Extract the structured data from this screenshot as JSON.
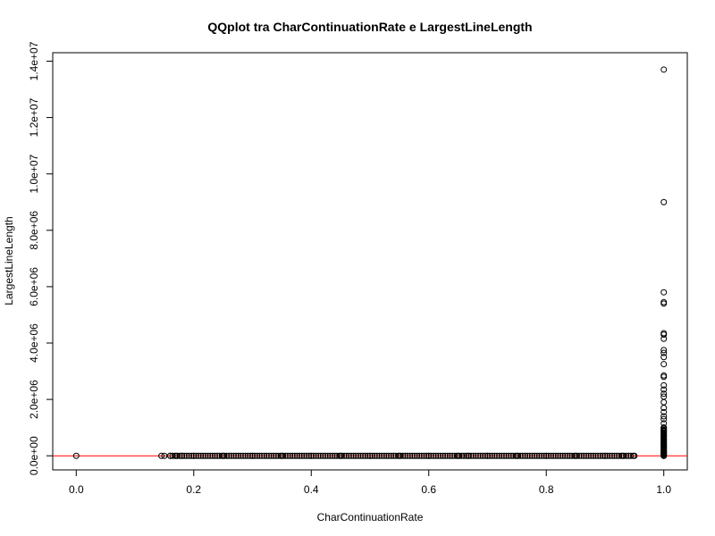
{
  "chart_data": {
    "type": "scatter",
    "title": "QQplot tra CharContinuationRate e LargestLineLength",
    "xlabel": "CharContinuationRate",
    "ylabel": "LargestLineLength",
    "xlim": [
      -0.04,
      1.04
    ],
    "ylim": [
      -500000,
      14300000
    ],
    "x_ticks": [
      0.0,
      0.2,
      0.4,
      0.6,
      0.8,
      1.0
    ],
    "x_tick_labels": [
      "0.0",
      "0.2",
      "0.4",
      "0.6",
      "0.8",
      "1.0"
    ],
    "y_ticks": [
      0,
      2000000,
      4000000,
      6000000,
      8000000,
      10000000,
      12000000,
      14000000
    ],
    "y_tick_labels": [
      "0.0e+00",
      "2.0e+06",
      "4.0e+06",
      "6.0e+06",
      "8.0e+06",
      "1.0e+07",
      "1.2e+07",
      "1.4e+07"
    ],
    "grid": false,
    "reference_line": {
      "y": 0,
      "color": "#ff0000"
    },
    "point_color": "#000000",
    "series": [
      {
        "x": [
          0.0,
          0.145,
          0.15,
          0.16,
          0.17,
          0.18,
          0.2,
          0.25,
          0.3,
          0.35,
          0.4,
          0.45,
          0.5,
          0.55,
          0.6,
          0.65,
          0.667,
          0.7,
          0.75,
          0.8,
          0.85,
          0.9,
          0.93,
          0.95,
          1.0,
          1.0,
          1.0,
          1.0,
          1.0,
          1.0,
          1.0,
          1.0,
          1.0,
          1.0,
          1.0,
          1.0,
          1.0,
          1.0,
          1.0,
          1.0,
          1.0,
          1.0,
          1.0,
          1.0,
          1.0,
          1.0,
          1.0,
          1.0,
          1.0,
          1.0,
          1.0,
          1.0,
          1.0,
          1.0,
          1.0,
          1.0,
          1.0,
          1.0,
          1.0,
          1.0,
          1.0,
          1.0
        ],
        "y": [
          0,
          0,
          0,
          0,
          0,
          0,
          0,
          0,
          0,
          0,
          0,
          0,
          0,
          0,
          0,
          0,
          0,
          0,
          0,
          0,
          0,
          0,
          0,
          0,
          0,
          50000,
          100000,
          150000,
          200000,
          300000,
          400000,
          500000,
          600000,
          700000,
          800000,
          900000,
          1000000,
          1150000,
          1300000,
          1400000,
          1550000,
          1700000,
          1900000,
          2100000,
          2200000,
          2350000,
          2500000,
          2800000,
          2850000,
          3250000,
          3500000,
          3650000,
          3750000,
          4150000,
          4300000,
          4350000,
          5400000,
          5450000,
          5800000,
          9000000,
          13700000,
          0
        ]
      }
    ]
  }
}
